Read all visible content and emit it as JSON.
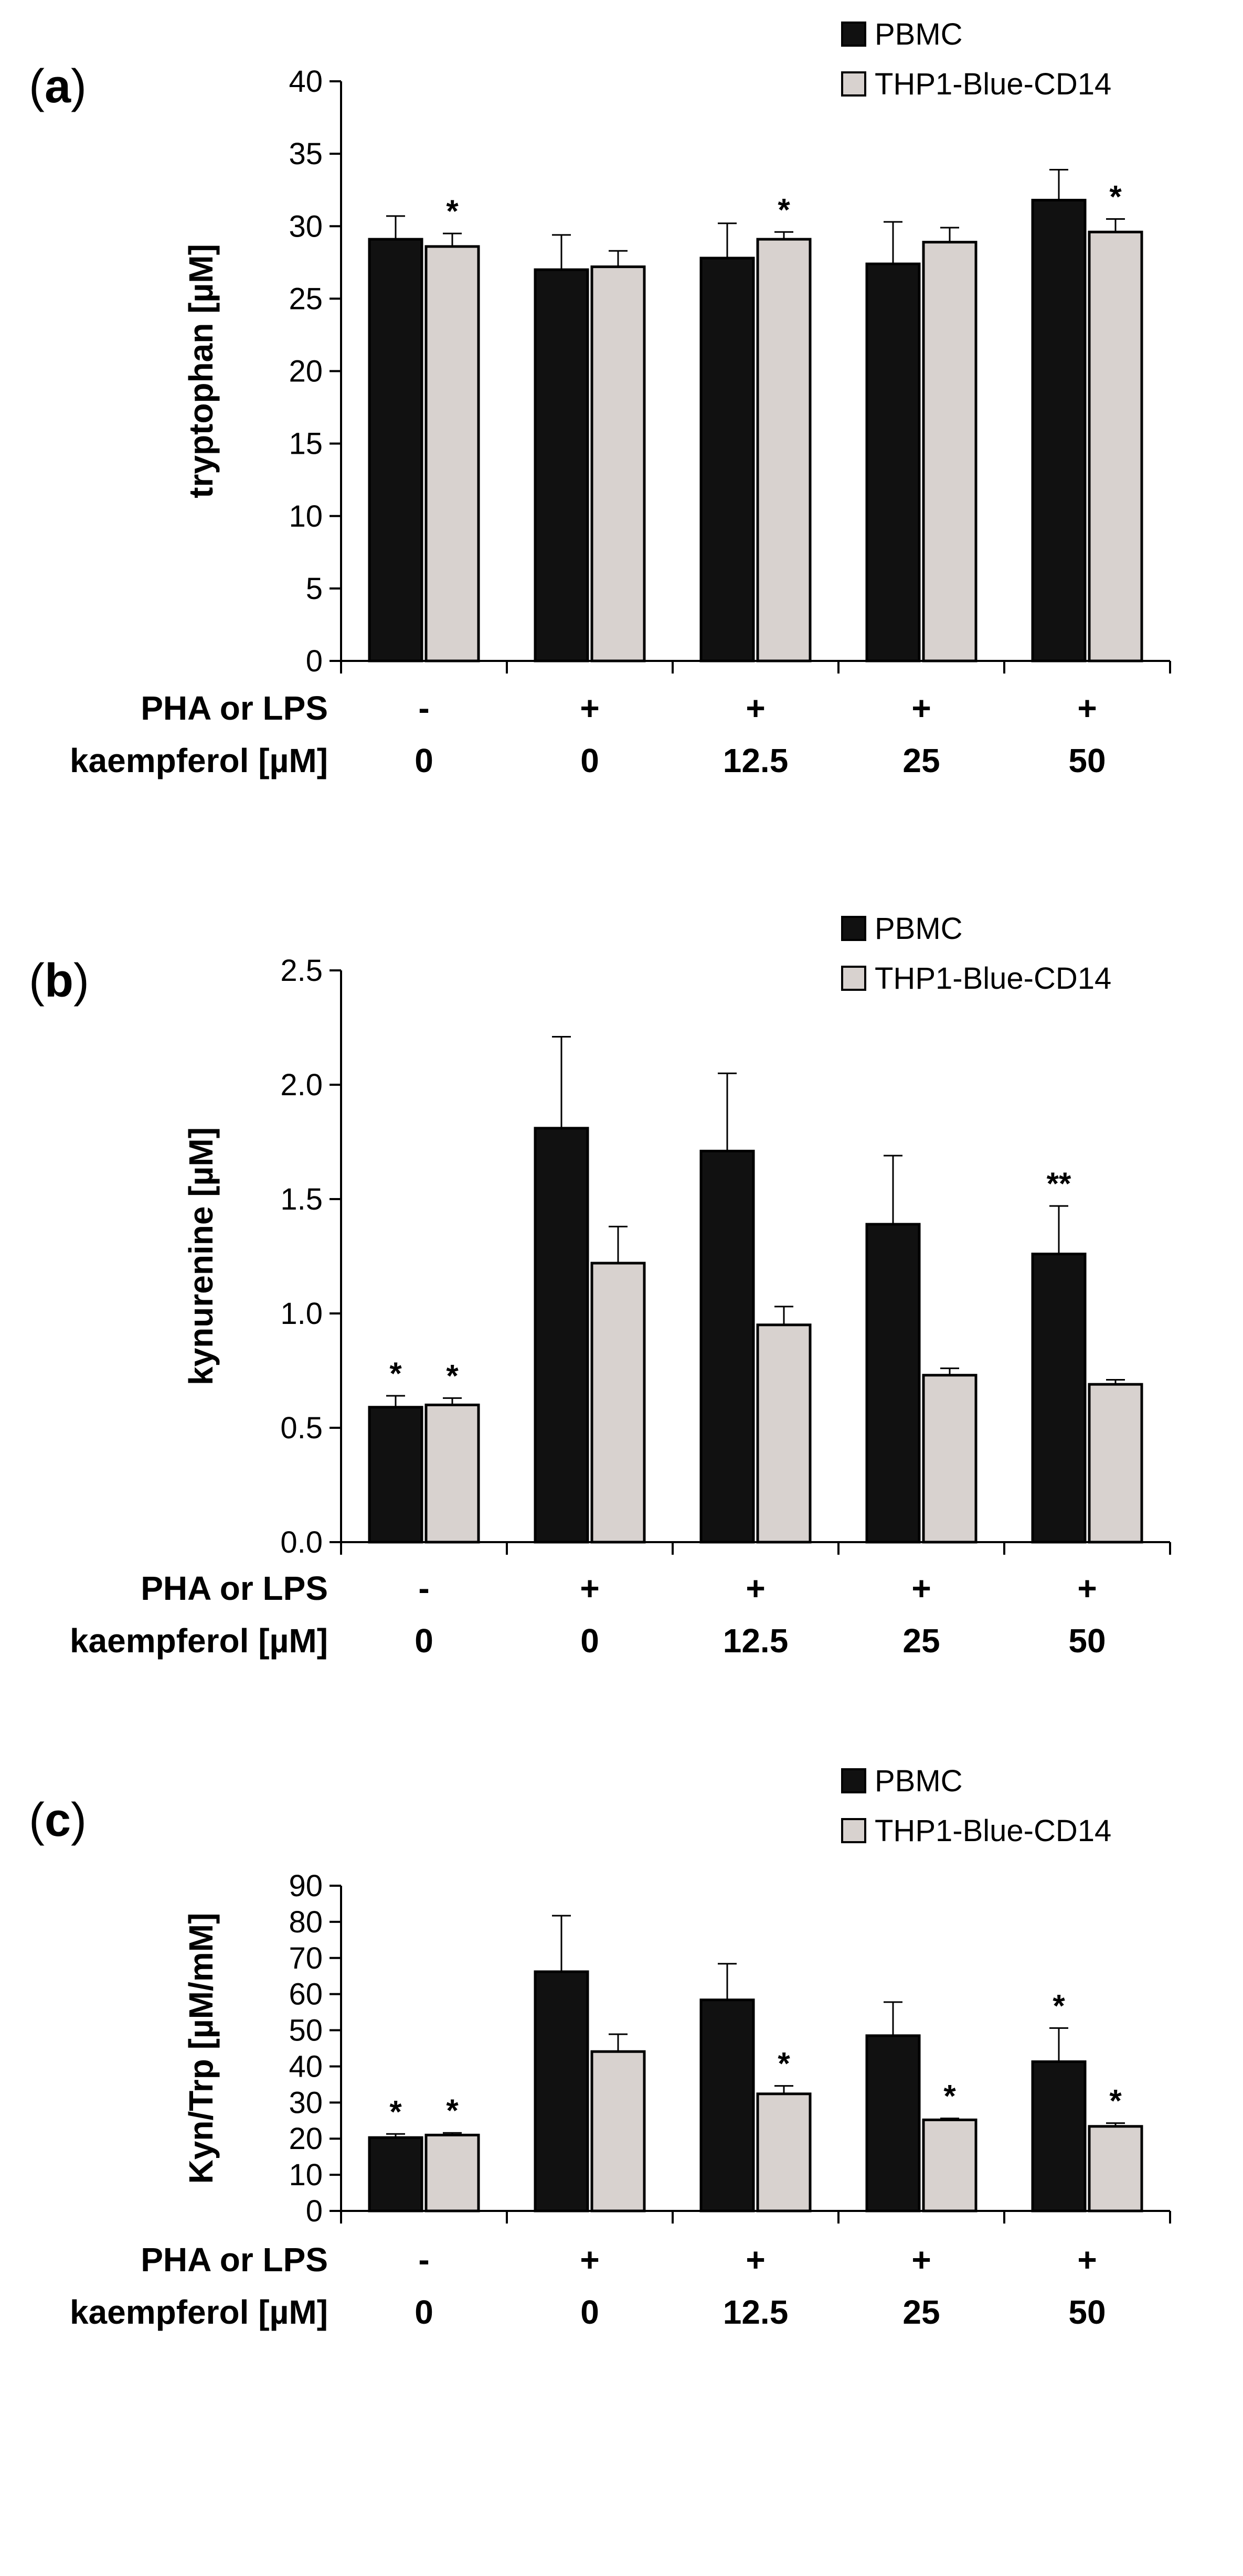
{
  "chart_data": [
    {
      "type": "bar",
      "panel": "a",
      "panel_label": [
        "(",
        "a",
        ")"
      ],
      "ylabel": "tryptophan [µM]",
      "ylim": [
        0,
        40
      ],
      "yticks": [
        0,
        5,
        10,
        15,
        20,
        25,
        30,
        35,
        40
      ],
      "row_labels": [
        "PHA or LPS",
        "kaempferol [µM]"
      ],
      "stimulus": [
        "-",
        "+",
        "+",
        "+",
        "+"
      ],
      "categories": [
        "0",
        "0",
        "12.5",
        "25",
        "50"
      ],
      "series": [
        {
          "name": "PBMC",
          "color": "#111111",
          "values": [
            29.1,
            27.0,
            27.8,
            27.4,
            31.8
          ],
          "errors": [
            1.6,
            2.4,
            2.4,
            2.9,
            2.1
          ],
          "sig": [
            "",
            "",
            "",
            "",
            ""
          ]
        },
        {
          "name": "THP1-Blue-CD14",
          "color": "#d8d2cf",
          "values": [
            28.6,
            27.2,
            29.1,
            28.9,
            29.6
          ],
          "errors": [
            0.9,
            1.1,
            0.5,
            1.0,
            0.9
          ],
          "sig": [
            "*",
            "",
            "*",
            "",
            "*"
          ]
        }
      ]
    },
    {
      "type": "bar",
      "panel": "b",
      "panel_label": [
        "(",
        "b",
        ")"
      ],
      "ylabel": "kynurenine [µM]",
      "ylim": [
        0,
        2.5
      ],
      "yticks": [
        "0.0",
        "0.5",
        "1.0",
        "1.5",
        "2.0",
        "2.5"
      ],
      "row_labels": [
        "PHA or LPS",
        "kaempferol [µM]"
      ],
      "stimulus": [
        "-",
        "+",
        "+",
        "+",
        "+"
      ],
      "categories": [
        "0",
        "0",
        "12.5",
        "25",
        "50"
      ],
      "series": [
        {
          "name": "PBMC",
          "color": "#111111",
          "values": [
            0.59,
            1.81,
            1.71,
            1.39,
            1.26
          ],
          "errors": [
            0.05,
            0.4,
            0.34,
            0.3,
            0.21
          ],
          "sig": [
            "*",
            "",
            "",
            "",
            "**"
          ]
        },
        {
          "name": "THP1-Blue-CD14",
          "color": "#d8d2cf",
          "values": [
            0.6,
            1.22,
            0.95,
            0.73,
            0.69
          ],
          "errors": [
            0.03,
            0.16,
            0.08,
            0.03,
            0.02
          ],
          "sig": [
            "*",
            "",
            "",
            "",
            ""
          ]
        }
      ]
    },
    {
      "type": "bar",
      "panel": "c",
      "panel_label": [
        "(",
        "c",
        ")"
      ],
      "ylabel": "Kyn/Trp  [µM/mM]",
      "ylim": [
        0,
        90
      ],
      "yticks": [
        0,
        10,
        20,
        30,
        40,
        50,
        60,
        70,
        80,
        90
      ],
      "row_labels": [
        "PHA or LPS",
        "kaempferol [µM]"
      ],
      "stimulus": [
        "-",
        "+",
        "+",
        "+",
        "+"
      ],
      "categories": [
        "0",
        "0",
        "12.5",
        "25",
        "50"
      ],
      "series": [
        {
          "name": "PBMC",
          "color": "#111111",
          "values": [
            20.3,
            66.2,
            58.4,
            48.5,
            41.3
          ],
          "errors": [
            1.0,
            15.5,
            10.0,
            9.3,
            9.3
          ],
          "sig": [
            "*",
            "",
            "",
            "",
            "*"
          ]
        },
        {
          "name": "THP1-Blue-CD14",
          "color": "#d8d2cf",
          "values": [
            21.0,
            44.1,
            32.4,
            25.2,
            23.4
          ],
          "errors": [
            0.6,
            4.8,
            2.2,
            0.4,
            0.9
          ],
          "sig": [
            "*",
            "",
            "*",
            "*",
            "*"
          ]
        }
      ]
    }
  ]
}
